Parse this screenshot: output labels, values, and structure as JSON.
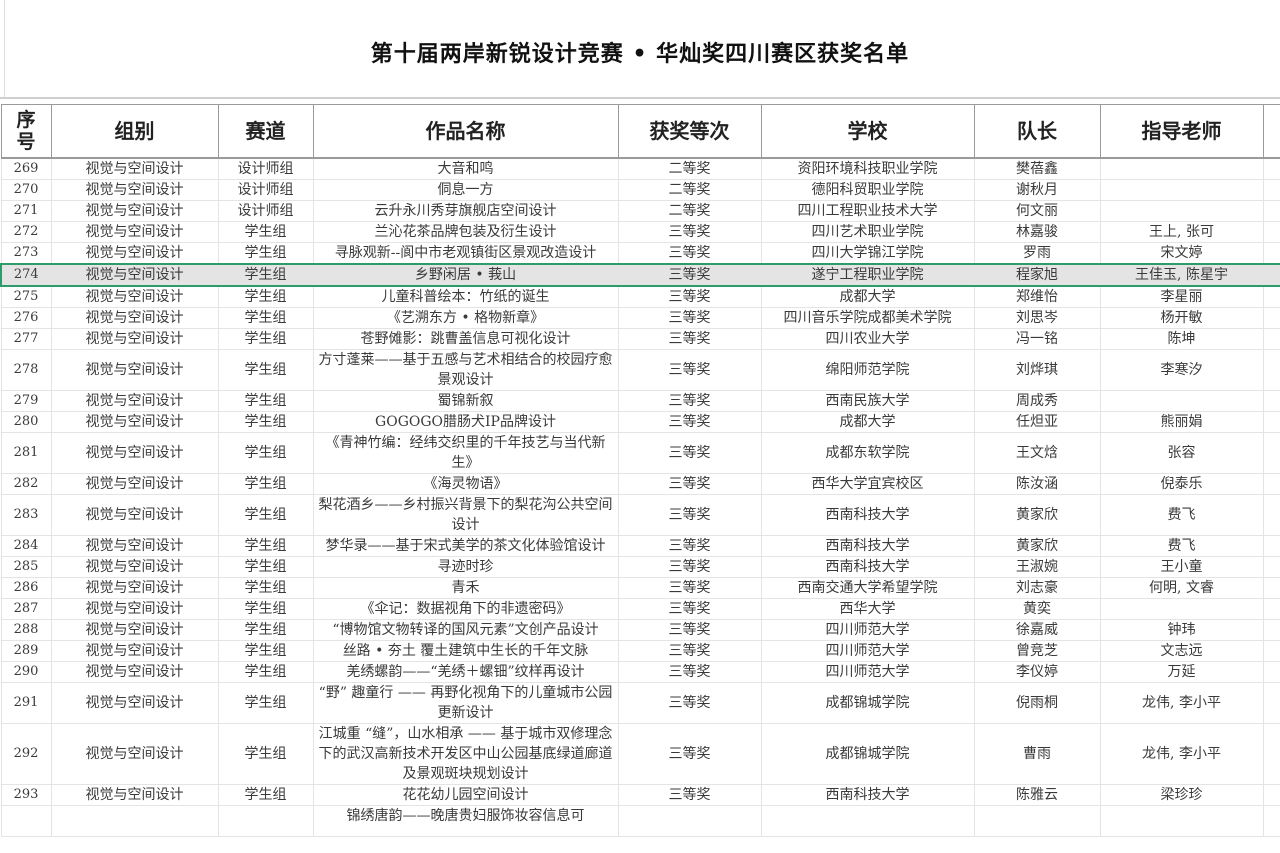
{
  "title": "第十届两岸新锐设计竞赛 • 华灿奖四川赛区获奖名单",
  "columns": [
    "序号",
    "组别",
    "赛道",
    "作品名称",
    "获奖等次",
    "学校",
    "队长",
    "指导老师"
  ],
  "selected_row": "274",
  "accent_color": "#2e9c6a",
  "rows": [
    {
      "no": "269",
      "group": "视觉与空间设计",
      "track": "设计师组",
      "work": "大音和鸣",
      "award": "二等奖",
      "school": "资阳环境科技职业学院",
      "captain": "樊蓓鑫",
      "advisor": ""
    },
    {
      "no": "270",
      "group": "视觉与空间设计",
      "track": "设计师组",
      "work": "侗息一方",
      "award": "二等奖",
      "school": "德阳科贸职业学院",
      "captain": "谢秋月",
      "advisor": ""
    },
    {
      "no": "271",
      "group": "视觉与空间设计",
      "track": "设计师组",
      "work": "云升永川秀芽旗舰店空间设计",
      "award": "二等奖",
      "school": "四川工程职业技术大学",
      "captain": "何文丽",
      "advisor": ""
    },
    {
      "no": "272",
      "group": "视觉与空间设计",
      "track": "学生组",
      "work": "兰沁花茶品牌包装及衍生设计",
      "award": "三等奖",
      "school": "四川艺术职业学院",
      "captain": "林嘉骏",
      "advisor": "王上, 张可"
    },
    {
      "no": "273",
      "group": "视觉与空间设计",
      "track": "学生组",
      "work": "寻脉观新--阆中市老观镇街区景观改造设计",
      "award": "三等奖",
      "school": "四川大学锦江学院",
      "captain": "罗雨",
      "advisor": "宋文婷"
    },
    {
      "no": "274",
      "group": "视觉与空间设计",
      "track": "学生组",
      "work": "乡野闲居 • 莪山",
      "award": "三等奖",
      "school": "遂宁工程职业学院",
      "captain": "程家旭",
      "advisor": "王佳玉, 陈星宇"
    },
    {
      "no": "275",
      "group": "视觉与空间设计",
      "track": "学生组",
      "work": "儿童科普绘本：竹纸的诞生",
      "award": "三等奖",
      "school": "成都大学",
      "captain": "郑维怡",
      "advisor": "李星丽"
    },
    {
      "no": "276",
      "group": "视觉与空间设计",
      "track": "学生组",
      "work": "《艺溯东方 • 格物新章》",
      "award": "三等奖",
      "school": "四川音乐学院成都美术学院",
      "captain": "刘思岑",
      "advisor": "杨开敏"
    },
    {
      "no": "277",
      "group": "视觉与空间设计",
      "track": "学生组",
      "work": "苍野傩影：跳曹盖信息可视化设计",
      "award": "三等奖",
      "school": "四川农业大学",
      "captain": "冯一铭",
      "advisor": "陈坤"
    },
    {
      "no": "278",
      "group": "视觉与空间设计",
      "track": "学生组",
      "work": "方寸蓬莱——基于五感与艺术相结合的校园疗愈景观设计",
      "award": "三等奖",
      "school": "绵阳师范学院",
      "captain": "刘烨琪",
      "advisor": "李寒汐"
    },
    {
      "no": "279",
      "group": "视觉与空间设计",
      "track": "学生组",
      "work": "蜀锦新叙",
      "award": "三等奖",
      "school": "西南民族大学",
      "captain": "周成秀",
      "advisor": ""
    },
    {
      "no": "280",
      "group": "视觉与空间设计",
      "track": "学生组",
      "work": "GOGOGO腊肠犬IP品牌设计",
      "award": "三等奖",
      "school": "成都大学",
      "captain": "任炟亚",
      "advisor": "熊丽娟"
    },
    {
      "no": "281",
      "group": "视觉与空间设计",
      "track": "学生组",
      "work": "《青神竹编：经纬交织里的千年技艺与当代新生》",
      "award": "三等奖",
      "school": "成都东软学院",
      "captain": "王文焓",
      "advisor": "张容"
    },
    {
      "no": "282",
      "group": "视觉与空间设计",
      "track": "学生组",
      "work": "《海灵物语》",
      "award": "三等奖",
      "school": "西华大学宜宾校区",
      "captain": "陈汝涵",
      "advisor": "倪泰乐"
    },
    {
      "no": "283",
      "group": "视觉与空间设计",
      "track": "学生组",
      "work": "梨花酒乡——乡村振兴背景下的梨花沟公共空间设计",
      "award": "三等奖",
      "school": "西南科技大学",
      "captain": "黄家欣",
      "advisor": "费飞"
    },
    {
      "no": "284",
      "group": "视觉与空间设计",
      "track": "学生组",
      "work": "梦华录——基于宋式美学的茶文化体验馆设计",
      "award": "三等奖",
      "school": "西南科技大学",
      "captain": "黄家欣",
      "advisor": "费飞"
    },
    {
      "no": "285",
      "group": "视觉与空间设计",
      "track": "学生组",
      "work": "寻迹时珍",
      "award": "三等奖",
      "school": "西南科技大学",
      "captain": "王淑婉",
      "advisor": "王小童"
    },
    {
      "no": "286",
      "group": "视觉与空间设计",
      "track": "学生组",
      "work": "青禾",
      "award": "三等奖",
      "school": "西南交通大学希望学院",
      "captain": "刘志豪",
      "advisor": "何明, 文睿"
    },
    {
      "no": "287",
      "group": "视觉与空间设计",
      "track": "学生组",
      "work": "《伞记：数据视角下的非遗密码》",
      "award": "三等奖",
      "school": "西华大学",
      "captain": "黄奕",
      "advisor": ""
    },
    {
      "no": "288",
      "group": "视觉与空间设计",
      "track": "学生组",
      "work": "“博物馆文物转译的国风元素”文创产品设计",
      "award": "三等奖",
      "school": "四川师范大学",
      "captain": "徐嘉威",
      "advisor": "钟玮"
    },
    {
      "no": "289",
      "group": "视觉与空间设计",
      "track": "学生组",
      "work": "丝路 • 夯土 覆土建筑中生长的千年文脉",
      "award": "三等奖",
      "school": "四川师范大学",
      "captain": "曾竞芝",
      "advisor": "文志远"
    },
    {
      "no": "290",
      "group": "视觉与空间设计",
      "track": "学生组",
      "work": "羌绣螺韵——“羌绣＋螺钿”纹样再设计",
      "award": "三等奖",
      "school": "四川师范大学",
      "captain": "李仪婷",
      "advisor": "万延"
    },
    {
      "no": "291",
      "group": "视觉与空间设计",
      "track": "学生组",
      "work": "“野” 趣童行 —— 再野化视角下的儿童城市公园更新设计",
      "award": "三等奖",
      "school": "成都锦城学院",
      "captain": "倪雨桐",
      "advisor": "龙伟, 李小平"
    },
    {
      "no": "292",
      "group": "视觉与空间设计",
      "track": "学生组",
      "work": "江城重 “缝”，山水相承 —— 基于城市双修理念下的武汉高新技术开发区中山公园基底绿道廊道及景观斑块规划设计",
      "award": "三等奖",
      "school": "成都锦城学院",
      "captain": "曹雨",
      "advisor": "龙伟, 李小平"
    },
    {
      "no": "293",
      "group": "视觉与空间设计",
      "track": "学生组",
      "work": "花花幼儿园空间设计",
      "award": "三等奖",
      "school": "西南科技大学",
      "captain": "陈雅云",
      "advisor": "梁珍珍"
    }
  ],
  "partial_row": {
    "work": "锦绣唐韵——晚唐贵妇服饰妆容信息可"
  }
}
